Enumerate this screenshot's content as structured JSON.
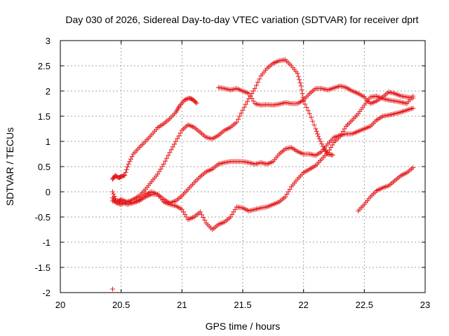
{
  "chart_data": {
    "type": "scatter",
    "title": "Day 030 of 2026, Sidereal Day-to-day VTEC variation (SDTVAR) for receiver dprt",
    "xlabel": "GPS time / hours",
    "ylabel": "SDTVAR / TECUs",
    "xlim": [
      20,
      23
    ],
    "ylim": [
      -2,
      3
    ],
    "xticks": [
      "20",
      "20.5",
      "21",
      "21.5",
      "22",
      "22.5",
      "23"
    ],
    "yticks": [
      "-2",
      "-1.5",
      "-1",
      "-0.5",
      "0",
      "0.5",
      "1",
      "1.5",
      "2",
      "2.5",
      "3"
    ],
    "grid": true,
    "marker": "plus",
    "color": "#e41a1c",
    "series": [
      {
        "points": [
          [
            20.43,
            0.25
          ],
          [
            20.45,
            0.32
          ],
          [
            20.48,
            0.28
          ],
          [
            20.5,
            0.3
          ],
          [
            20.53,
            0.33
          ],
          [
            20.56,
            0.55
          ],
          [
            20.6,
            0.75
          ],
          [
            20.65,
            0.88
          ],
          [
            20.7,
            1.0
          ],
          [
            20.75,
            1.13
          ],
          [
            20.8,
            1.27
          ],
          [
            20.85,
            1.35
          ],
          [
            20.9,
            1.45
          ],
          [
            20.95,
            1.58
          ],
          [
            20.98,
            1.7
          ],
          [
            21.02,
            1.82
          ],
          [
            21.06,
            1.86
          ],
          [
            21.09,
            1.83
          ],
          [
            21.12,
            1.76
          ]
        ]
      },
      {
        "points": [
          [
            20.43,
            -0.12
          ],
          [
            20.46,
            -0.22
          ],
          [
            20.5,
            -0.25
          ],
          [
            20.55,
            -0.2
          ],
          [
            20.6,
            -0.15
          ],
          [
            20.65,
            -0.08
          ],
          [
            20.7,
            0.05
          ],
          [
            20.75,
            0.2
          ],
          [
            20.8,
            0.35
          ],
          [
            20.85,
            0.55
          ],
          [
            20.9,
            0.78
          ],
          [
            20.95,
            1.0
          ],
          [
            21.0,
            1.22
          ],
          [
            21.05,
            1.33
          ],
          [
            21.1,
            1.28
          ],
          [
            21.15,
            1.18
          ],
          [
            21.2,
            1.08
          ],
          [
            21.25,
            1.05
          ],
          [
            21.3,
            1.12
          ],
          [
            21.35,
            1.22
          ],
          [
            21.4,
            1.28
          ],
          [
            21.45,
            1.38
          ],
          [
            21.5,
            1.62
          ],
          [
            21.55,
            1.85
          ],
          [
            21.6,
            2.05
          ],
          [
            21.65,
            2.3
          ],
          [
            21.7,
            2.45
          ],
          [
            21.75,
            2.55
          ],
          [
            21.8,
            2.6
          ],
          [
            21.85,
            2.62
          ],
          [
            21.9,
            2.5
          ],
          [
            21.95,
            2.35
          ],
          [
            21.98,
            2.1
          ],
          [
            22.0,
            1.8
          ],
          [
            22.05,
            1.55
          ],
          [
            22.1,
            1.25
          ],
          [
            22.13,
            1.05
          ],
          [
            22.17,
            0.85
          ],
          [
            22.2,
            0.75
          ],
          [
            22.24,
            0.73
          ]
        ]
      },
      {
        "points": [
          [
            20.43,
            0.0
          ],
          [
            20.46,
            -0.18
          ],
          [
            20.5,
            -0.2
          ],
          [
            20.55,
            -0.25
          ],
          [
            20.6,
            -0.22
          ],
          [
            20.65,
            -0.18
          ],
          [
            20.7,
            -0.1
          ],
          [
            20.75,
            -0.05
          ],
          [
            20.8,
            -0.05
          ],
          [
            20.85,
            -0.15
          ],
          [
            20.9,
            -0.22
          ],
          [
            20.95,
            -0.18
          ],
          [
            21.0,
            -0.08
          ],
          [
            21.05,
            0.05
          ],
          [
            21.1,
            0.18
          ],
          [
            21.15,
            0.3
          ],
          [
            21.2,
            0.4
          ],
          [
            21.25,
            0.45
          ],
          [
            21.3,
            0.55
          ],
          [
            21.35,
            0.58
          ],
          [
            21.4,
            0.6
          ],
          [
            21.45,
            0.6
          ],
          [
            21.5,
            0.6
          ],
          [
            21.55,
            0.58
          ],
          [
            21.6,
            0.55
          ],
          [
            21.65,
            0.58
          ],
          [
            21.7,
            0.55
          ],
          [
            21.75,
            0.6
          ],
          [
            21.8,
            0.75
          ],
          [
            21.85,
            0.85
          ],
          [
            21.9,
            0.88
          ],
          [
            21.95,
            0.8
          ],
          [
            22.0,
            0.75
          ],
          [
            22.05,
            0.75
          ],
          [
            22.1,
            0.72
          ],
          [
            22.15,
            0.8
          ],
          [
            22.2,
            0.95
          ],
          [
            22.25,
            1.08
          ],
          [
            22.3,
            1.12
          ],
          [
            22.35,
            1.15
          ],
          [
            22.4,
            1.15
          ],
          [
            22.45,
            1.2
          ],
          [
            22.5,
            1.25
          ],
          [
            22.55,
            1.3
          ],
          [
            22.6,
            1.42
          ],
          [
            22.65,
            1.5
          ],
          [
            22.7,
            1.52
          ],
          [
            22.75,
            1.55
          ],
          [
            22.8,
            1.58
          ],
          [
            22.85,
            1.62
          ],
          [
            22.9,
            1.66
          ]
        ]
      },
      {
        "points": [
          [
            20.43,
            -0.18
          ],
          [
            20.47,
            -0.2
          ],
          [
            20.5,
            -0.15
          ],
          [
            20.55,
            -0.2
          ],
          [
            20.6,
            -0.22
          ],
          [
            20.65,
            -0.15
          ],
          [
            20.7,
            -0.05
          ],
          [
            20.75,
            0.0
          ],
          [
            20.8,
            -0.05
          ],
          [
            20.85,
            -0.2
          ],
          [
            20.9,
            -0.25
          ],
          [
            20.95,
            -0.28
          ],
          [
            21.0,
            -0.35
          ],
          [
            21.05,
            -0.55
          ],
          [
            21.1,
            -0.5
          ],
          [
            21.15,
            -0.4
          ],
          [
            21.2,
            -0.62
          ],
          [
            21.25,
            -0.75
          ],
          [
            21.3,
            -0.65
          ],
          [
            21.35,
            -0.6
          ],
          [
            21.4,
            -0.5
          ],
          [
            21.45,
            -0.3
          ],
          [
            21.5,
            -0.32
          ],
          [
            21.55,
            -0.38
          ],
          [
            21.6,
            -0.35
          ],
          [
            21.65,
            -0.32
          ],
          [
            21.7,
            -0.3
          ],
          [
            21.75,
            -0.25
          ],
          [
            21.8,
            -0.2
          ],
          [
            21.85,
            -0.1
          ],
          [
            21.9,
            0.1
          ],
          [
            21.95,
            0.25
          ],
          [
            22.0,
            0.38
          ],
          [
            22.05,
            0.45
          ],
          [
            22.1,
            0.52
          ],
          [
            22.15,
            0.65
          ],
          [
            22.2,
            0.78
          ],
          [
            22.25,
            0.98
          ],
          [
            22.3,
            1.1
          ],
          [
            22.35,
            1.3
          ],
          [
            22.4,
            1.42
          ],
          [
            22.45,
            1.55
          ],
          [
            22.5,
            1.72
          ],
          [
            22.55,
            1.88
          ],
          [
            22.6,
            1.9
          ],
          [
            22.65,
            1.85
          ],
          [
            22.7,
            1.82
          ],
          [
            22.75,
            1.8
          ],
          [
            22.8,
            1.78
          ],
          [
            22.85,
            1.75
          ],
          [
            22.9,
            1.9
          ]
        ]
      },
      {
        "points": [
          [
            21.3,
            2.07
          ],
          [
            21.35,
            2.05
          ],
          [
            21.4,
            2.02
          ],
          [
            21.45,
            2.05
          ],
          [
            21.5,
            2.0
          ],
          [
            21.55,
            1.95
          ],
          [
            21.6,
            1.75
          ],
          [
            21.65,
            1.72
          ],
          [
            21.7,
            1.73
          ],
          [
            21.75,
            1.72
          ],
          [
            21.8,
            1.74
          ],
          [
            21.85,
            1.77
          ],
          [
            21.9,
            1.75
          ],
          [
            21.95,
            1.75
          ],
          [
            22.0,
            1.82
          ],
          [
            22.05,
            1.95
          ],
          [
            22.1,
            2.05
          ],
          [
            22.15,
            2.05
          ],
          [
            22.2,
            2.02
          ],
          [
            22.25,
            2.06
          ],
          [
            22.3,
            2.1
          ],
          [
            22.35,
            2.07
          ],
          [
            22.4,
            2.0
          ],
          [
            22.45,
            1.95
          ],
          [
            22.5,
            1.88
          ],
          [
            22.55,
            1.75
          ],
          [
            22.6,
            1.8
          ],
          [
            22.65,
            1.88
          ],
          [
            22.7,
            1.98
          ],
          [
            22.75,
            1.95
          ],
          [
            22.8,
            1.9
          ],
          [
            22.85,
            1.88
          ],
          [
            22.9,
            1.86
          ]
        ]
      },
      {
        "points": [
          [
            22.45,
            -0.38
          ],
          [
            22.5,
            -0.25
          ],
          [
            22.55,
            -0.1
          ],
          [
            22.6,
            0.02
          ],
          [
            22.65,
            0.08
          ],
          [
            22.7,
            0.12
          ],
          [
            22.75,
            0.22
          ],
          [
            22.8,
            0.32
          ],
          [
            22.85,
            0.38
          ],
          [
            22.9,
            0.48
          ]
        ]
      },
      {
        "points": [
          [
            20.43,
            -1.93
          ]
        ]
      }
    ]
  }
}
